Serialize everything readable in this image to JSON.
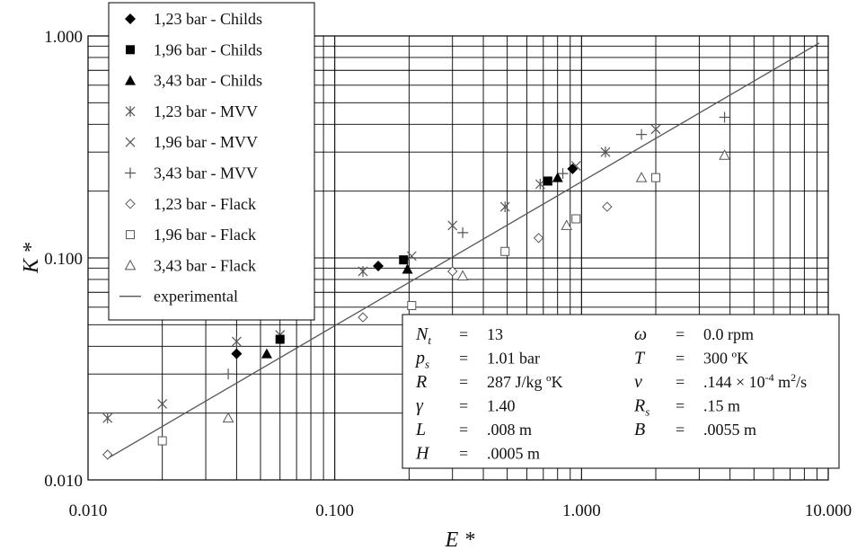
{
  "chart_data": {
    "type": "scatter",
    "x_scale": "log",
    "y_scale": "log",
    "xlim": [
      0.01,
      10
    ],
    "ylim": [
      0.01,
      1
    ],
    "grid": true,
    "xlabel": "E *",
    "ylabel": "K *",
    "x_ticks": [
      "0.010",
      "0.100",
      "1.000",
      "10.000"
    ],
    "y_ticks": [
      "0.010",
      "0.100",
      "1.000"
    ],
    "legend_position": "top-left",
    "series": [
      {
        "name": "1,23 bar - Childs",
        "marker": "diamond-filled",
        "points": [
          [
            0.04,
            0.037
          ],
          [
            0.15,
            0.092
          ],
          [
            0.92,
            0.252
          ]
        ]
      },
      {
        "name": "1,96 bar - Childs",
        "marker": "square-filled",
        "points": [
          [
            0.06,
            0.043
          ],
          [
            0.19,
            0.098
          ],
          [
            0.73,
            0.222
          ]
        ]
      },
      {
        "name": "3,43 bar - Childs",
        "marker": "triangle-filled",
        "points": [
          [
            0.053,
            0.037
          ],
          [
            0.197,
            0.089
          ],
          [
            0.8,
            0.23
          ]
        ]
      },
      {
        "name": "1,23 bar - MVV",
        "marker": "asterisk",
        "points": [
          [
            0.012,
            0.019
          ],
          [
            0.04,
            0.042
          ],
          [
            0.13,
            0.087
          ],
          [
            0.3,
            0.14
          ],
          [
            0.49,
            0.17
          ],
          [
            0.68,
            0.215
          ],
          [
            1.25,
            0.3
          ],
          [
            2.0,
            0.38
          ]
        ]
      },
      {
        "name": "1,96 bar - MVV",
        "marker": "x",
        "points": [
          [
            0.02,
            0.022
          ],
          [
            0.06,
            0.045
          ],
          [
            0.205,
            0.102
          ],
          [
            0.95,
            0.26
          ]
        ]
      },
      {
        "name": "3,43 bar - MVV",
        "marker": "plus",
        "points": [
          [
            0.037,
            0.03
          ],
          [
            0.33,
            0.13
          ],
          [
            0.84,
            0.24
          ],
          [
            1.75,
            0.36
          ],
          [
            3.8,
            0.43
          ]
        ]
      },
      {
        "name": "1,23 bar - Flack",
        "marker": "diamond-open",
        "points": [
          [
            0.012,
            0.013
          ],
          [
            0.13,
            0.054
          ],
          [
            0.3,
            0.087
          ],
          [
            0.67,
            0.123
          ],
          [
            1.27,
            0.17
          ]
        ]
      },
      {
        "name": "1,96 bar - Flack",
        "marker": "square-open",
        "points": [
          [
            0.02,
            0.015
          ],
          [
            0.205,
            0.061
          ],
          [
            0.49,
            0.107
          ],
          [
            0.95,
            0.15
          ],
          [
            2.0,
            0.23
          ]
        ]
      },
      {
        "name": "3,43 bar - Flack",
        "marker": "triangle-open",
        "points": [
          [
            0.037,
            0.019
          ],
          [
            0.33,
            0.083
          ],
          [
            0.87,
            0.14
          ],
          [
            1.75,
            0.23
          ],
          [
            3.8,
            0.29
          ]
        ]
      },
      {
        "name": "experimental",
        "marker": "line",
        "points": [
          [
            0.012,
            0.0125
          ],
          [
            9.2,
            0.93
          ]
        ]
      }
    ]
  },
  "params": [
    {
      "sym": "N",
      "sub": "t",
      "eq": "=",
      "val": "13"
    },
    {
      "sym": "p",
      "sub": "s",
      "eq": "=",
      "val": "1.01 bar"
    },
    {
      "sym": "R",
      "sub": "",
      "eq": "=",
      "val": "287 J/kg ºK"
    },
    {
      "sym": "γ",
      "sub": "",
      "eq": "=",
      "val": "1.40"
    },
    {
      "sym": "L",
      "sub": "",
      "eq": "=",
      "val": ".008 m"
    },
    {
      "sym": "H",
      "sub": "",
      "eq": "=",
      "val": ".0005 m"
    },
    {
      "sym": "ω",
      "sub": "",
      "eq": "=",
      "val": "0.0 rpm"
    },
    {
      "sym": "T",
      "sub": "",
      "eq": "=",
      "val": "300 ºK"
    },
    {
      "sym": "ν",
      "sub": "",
      "eq": "=",
      "val": ".144 × 10",
      "sup": "-4",
      "val2": " m",
      "sup2": "2",
      "val3": "/s"
    },
    {
      "sym": "R",
      "sub": "s",
      "eq": "=",
      "val": ".15 m"
    },
    {
      "sym": "B",
      "sub": "",
      "eq": "=",
      "val": ".0055 m"
    }
  ],
  "colors": {
    "marker": "#000000",
    "grid": "#000000",
    "line": "#555555"
  }
}
